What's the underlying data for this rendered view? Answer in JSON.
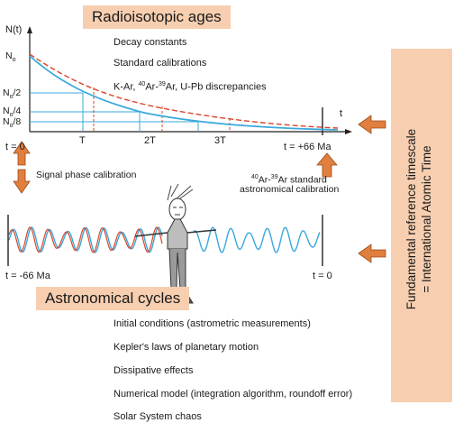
{
  "top_title": "Radioisotopic ages",
  "y_axis_label": "N(t)",
  "y_ticks": [
    {
      "base": "N",
      "sub": "o",
      "rest": ""
    },
    {
      "base": "N",
      "sub": "o",
      "rest": "/2"
    },
    {
      "base": "N",
      "sub": "o",
      "rest": "/4"
    },
    {
      "base": "N",
      "sub": "o",
      "rest": "/8"
    }
  ],
  "top_list": {
    "decay": "Decay constants",
    "calibrations": "Standard calibrations",
    "discrepancies": {
      "p1": "K-Ar, ",
      "sup1": "40",
      "p2": "Ar-",
      "sup2": "39",
      "p3": "Ar, U-Pb discrepancies"
    }
  },
  "x_axis_label": "t",
  "x_ticks": [
    "T",
    "2T",
    "3T"
  ],
  "t_zero_top": "t = 0",
  "t_plus": "t = +66 Ma",
  "signal_calibration": "Signal phase calibration",
  "ar_calibration": {
    "sup1": "40",
    "p1": "Ar-",
    "sup2": "39",
    "p2": "Ar standard",
    "line2": "astronomical calibration"
  },
  "t_minus": "t = -66 Ma",
  "t_zero_bottom": "t = 0",
  "bottom_title": "Astronomical cycles",
  "bottom_list": [
    "Initial conditions (astrometric measurements)",
    "Kepler's laws of planetary motion",
    "Dissipative effects",
    "Numerical model (integration algorithm, roundoff error)",
    "Solar System chaos"
  ],
  "right_panel": {
    "line1": "Fundamental reference timescale",
    "line2": "= International Atomic Time"
  },
  "colors": {
    "title_bg": "#f7cfb0",
    "blue_curve": "#3aa8dc",
    "red_curve": "#d8452b",
    "arrow": "#e07f3e"
  },
  "icons": [
    "double-arrow-icon",
    "up-arrow-icon",
    "left-arrow-icon",
    "person-figure-icon"
  ]
}
